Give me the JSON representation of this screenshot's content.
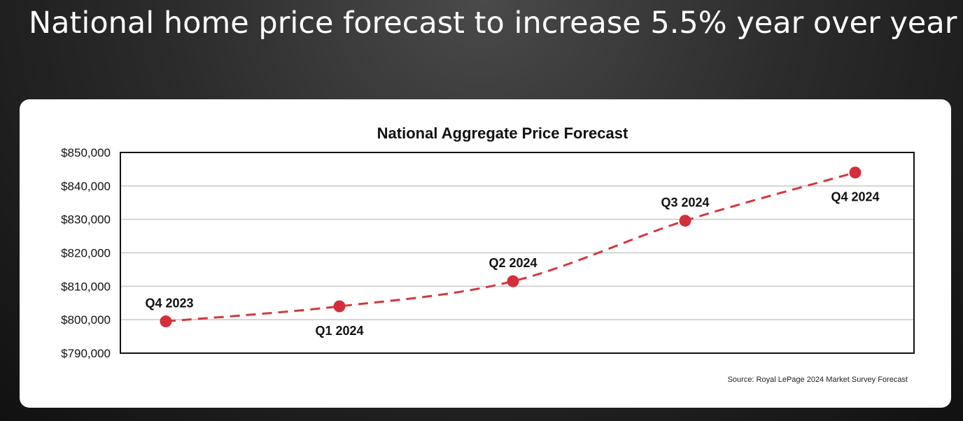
{
  "headline": "National home price forecast to increase 5.5% year over year",
  "colors": {
    "line": "#d5373f",
    "point": "#d32f3a",
    "grid": "#c8c8c8",
    "frame": "#111111",
    "text": "#111111"
  },
  "source": "Source: Royal LePage 2024 Market Survey Forecast",
  "chart_data": {
    "type": "line",
    "title": "National Aggregate Price Forecast",
    "categories": [
      "Q4 2023",
      "Q1 2024",
      "Q2 2024",
      "Q3 2024",
      "Q4 2024"
    ],
    "values": [
      799500,
      804000,
      811500,
      829600,
      844000
    ],
    "point_labels": [
      "Q4 2023",
      "Q1 2024",
      "Q2 2024",
      "Q3 2024",
      "Q4 2024"
    ],
    "point_label_positions": [
      "above",
      "below",
      "above",
      "above",
      "below"
    ],
    "ylim": [
      790000,
      850000
    ],
    "yticks": [
      790000,
      800000,
      810000,
      820000,
      830000,
      840000,
      850000
    ],
    "ytick_labels": [
      "$790,000",
      "$800,000",
      "$810,000",
      "$820,000",
      "$830,000",
      "$840,000",
      "$850,000"
    ],
    "line_style": "dashed",
    "grid": true,
    "legend": "none"
  }
}
